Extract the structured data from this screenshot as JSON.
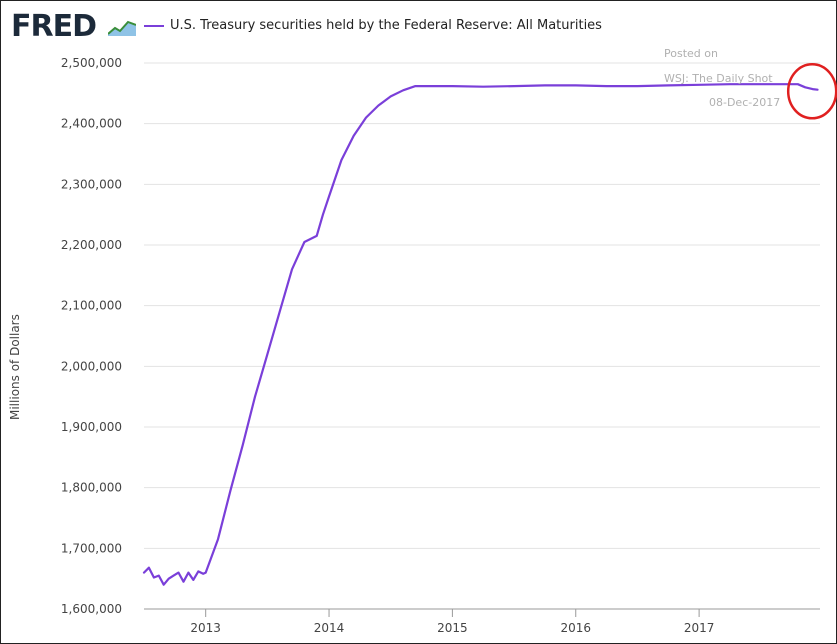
{
  "logo": {
    "text": "FRED",
    "icon": "chart-line-icon"
  },
  "annotation": {
    "line1": "Posted on",
    "line2": "WSJ: The Daily Shot",
    "line3": "08-Dec-2017",
    "circle_color": "#e02020"
  },
  "chart_data": {
    "type": "line",
    "title": "U.S. Treasury securities held by the Federal Reserve: All Maturities",
    "xlabel": "",
    "ylabel": "Millions of Dollars",
    "xlim": [
      2012.5,
      2017.98
    ],
    "ylim": [
      1600000,
      2500000
    ],
    "x_ticks": [
      "2013",
      "2014",
      "2015",
      "2016",
      "2017"
    ],
    "y_ticks": [
      "1,600,000",
      "1,700,000",
      "1,800,000",
      "1,900,000",
      "2,000,000",
      "2,100,000",
      "2,200,000",
      "2,300,000",
      "2,400,000",
      "2,500,000"
    ],
    "grid": true,
    "color": "#7a3fd9",
    "series": [
      {
        "name": "U.S. Treasury securities held by the Federal Reserve: All Maturities",
        "x": [
          2012.5,
          2012.54,
          2012.58,
          2012.62,
          2012.66,
          2012.7,
          2012.74,
          2012.78,
          2012.82,
          2012.86,
          2012.9,
          2012.94,
          2012.98,
          2013.0,
          2013.1,
          2013.2,
          2013.3,
          2013.4,
          2013.5,
          2013.6,
          2013.7,
          2013.8,
          2013.9,
          2013.95,
          2014.0,
          2014.1,
          2014.2,
          2014.3,
          2014.4,
          2014.5,
          2014.6,
          2014.7,
          2014.75,
          2014.85,
          2015.0,
          2015.25,
          2015.5,
          2015.75,
          2016.0,
          2016.25,
          2016.5,
          2016.75,
          2017.0,
          2017.25,
          2017.5,
          2017.7,
          2017.8,
          2017.86,
          2017.92,
          2017.96
        ],
        "y": [
          1660000,
          1668000,
          1652000,
          1655000,
          1640000,
          1650000,
          1655000,
          1660000,
          1645000,
          1660000,
          1648000,
          1662000,
          1658000,
          1660000,
          1715000,
          1795000,
          1870000,
          1950000,
          2020000,
          2090000,
          2160000,
          2205000,
          2215000,
          2250000,
          2280000,
          2340000,
          2380000,
          2410000,
          2430000,
          2445000,
          2455000,
          2462000,
          2462000,
          2462000,
          2462000,
          2461000,
          2462000,
          2463000,
          2463000,
          2462000,
          2462000,
          2463000,
          2464000,
          2465000,
          2465000,
          2465000,
          2465000,
          2460000,
          2457000,
          2456000
        ]
      }
    ]
  }
}
